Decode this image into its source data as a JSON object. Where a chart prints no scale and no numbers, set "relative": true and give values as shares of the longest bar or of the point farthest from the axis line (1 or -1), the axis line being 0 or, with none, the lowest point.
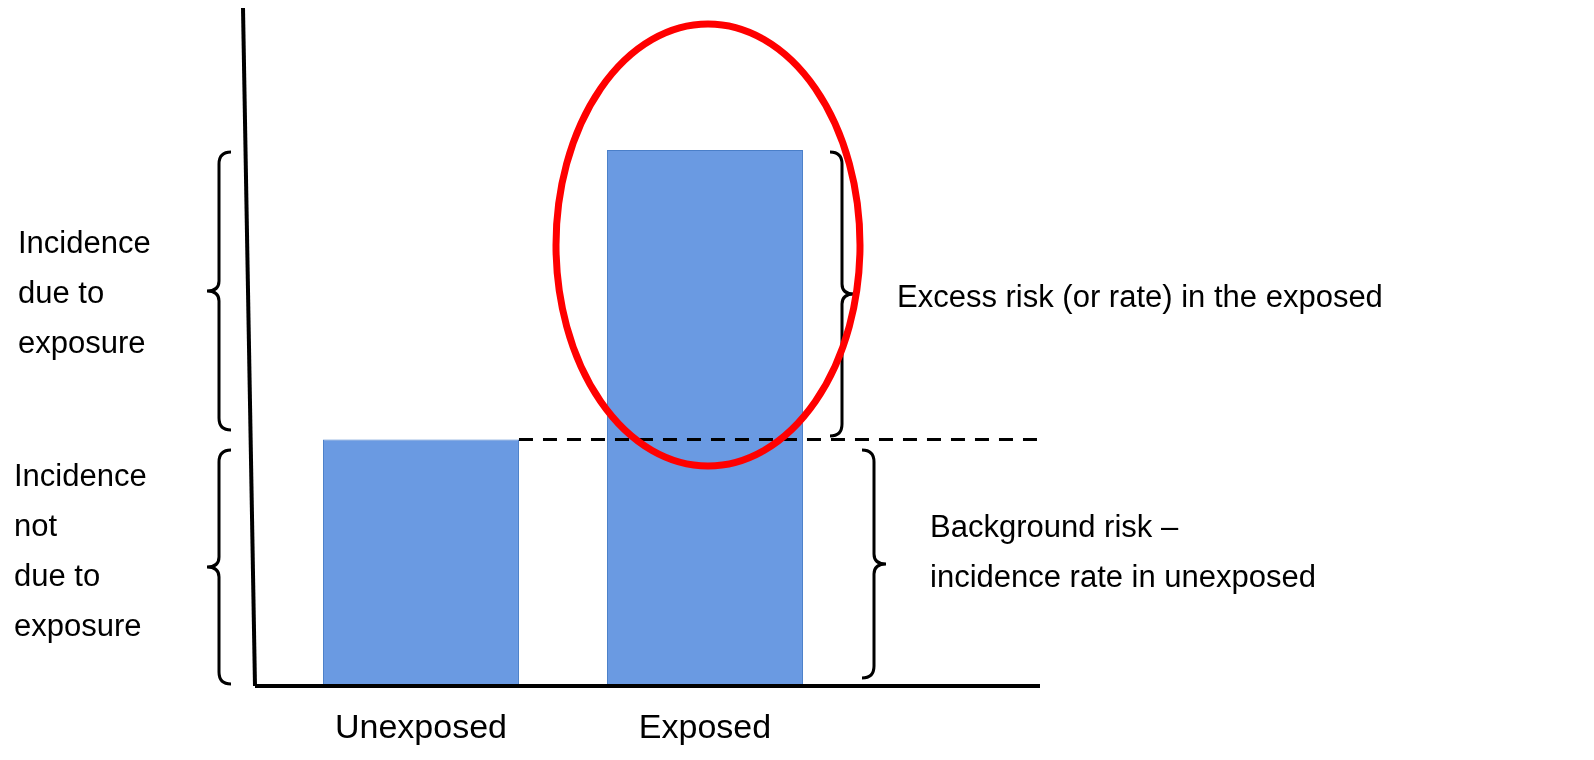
{
  "chart_data": {
    "type": "bar",
    "relative": true,
    "categories": [
      "Unexposed",
      "Exposed"
    ],
    "values": [
      0.46,
      1
    ],
    "color": "#6a9ae2",
    "grid": false,
    "legend": false,
    "ref_lines": [
      {
        "axis": "y",
        "value": 0.46,
        "line_style": "dashed",
        "color": "#000000"
      }
    ],
    "annotations": [
      "Incidence\ndue to\nexposure",
      "Incidence\nnot\ndue to\nexposure",
      "Excess risk (or rate) in the exposed",
      "Background risk –\nincidence rate in unexposed"
    ]
  }
}
